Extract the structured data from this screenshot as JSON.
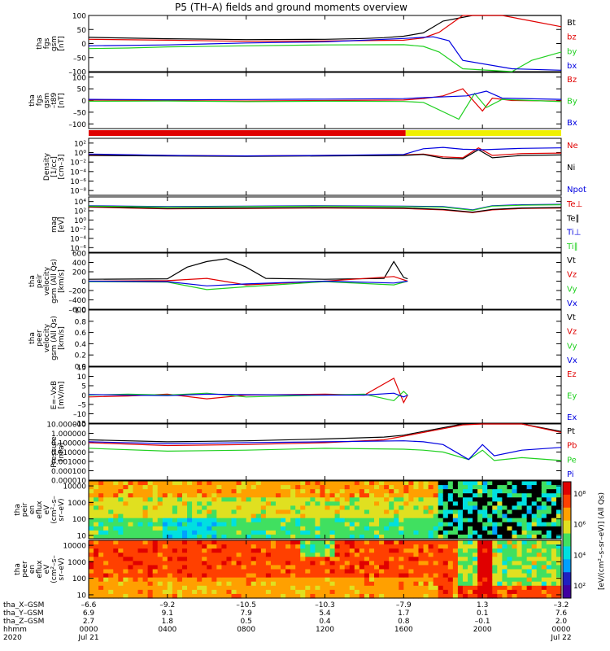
{
  "title": "P5 (TH–A) fields and ground moments overview",
  "colors": {
    "black": "#000000",
    "red": "#e00000",
    "green": "#20d020",
    "blue": "#0000e0",
    "yellow": "#f0f000"
  },
  "panels": [
    {
      "ylabel": [
        "tha",
        "fgs",
        "gsm",
        "[nT]"
      ],
      "ticks": [
        "100",
        "50",
        "0",
        "–50",
        "–100"
      ],
      "tick_values": [
        100,
        50,
        0,
        -50,
        -100
      ],
      "ylim": [
        -100,
        100
      ],
      "legend": [
        {
          "text": "Bt",
          "color": "black"
        },
        {
          "text": "bz",
          "color": "red"
        },
        {
          "text": "by",
          "color": "green"
        },
        {
          "text": "bx",
          "color": "blue"
        }
      ]
    },
    {
      "ylabel": [
        "tha",
        "fgs",
        "gsm",
        "–t89",
        "[nT]"
      ],
      "ticks": [
        "100",
        "50",
        "0",
        "–50",
        "–100"
      ],
      "tick_values": [
        100,
        50,
        0,
        -50,
        -100
      ],
      "ylim": [
        -120,
        120
      ],
      "legend": [
        {
          "text": "Bz",
          "color": "red"
        },
        {
          "text": "By",
          "color": "green"
        },
        {
          "text": "Bx",
          "color": "blue"
        }
      ]
    },
    {
      "ylabel": [
        "Density",
        "[1/cc]",
        "[cm–3]"
      ],
      "ticks": [
        "10²",
        "10⁰",
        "10⁻²",
        "10⁻⁴",
        "10⁻⁶",
        "10⁻⁸"
      ],
      "tick_values": [
        2,
        0,
        -2,
        -4,
        -6,
        -8
      ],
      "ylim": [
        -9,
        3
      ],
      "legend": [
        {
          "text": "Ne",
          "color": "red"
        },
        {
          "text": "Ni",
          "color": "black"
        },
        {
          "text": "Npot",
          "color": "blue"
        }
      ]
    },
    {
      "ylabel": [
        "mag",
        "[eV]"
      ],
      "ticks": [
        "10⁴",
        "10²",
        "10⁰",
        "10⁻²",
        "10⁻⁴",
        "10⁻⁶"
      ],
      "tick_values": [
        4,
        2,
        0,
        -2,
        -4,
        -6
      ],
      "ylim": [
        -7,
        5
      ],
      "legend": [
        {
          "text": "Te⊥",
          "color": "red"
        },
        {
          "text": "Te∥",
          "color": "black"
        },
        {
          "text": "Ti⊥",
          "color": "blue"
        },
        {
          "text": "Ti∥",
          "color": "green"
        }
      ]
    },
    {
      "ylabel": [
        "tha",
        "peir",
        "velocity",
        "gsm (All Qs)",
        "[km/s]"
      ],
      "ticks": [
        "600",
        "400",
        "200",
        "0",
        "–200",
        "–400",
        "–600"
      ],
      "tick_values": [
        600,
        400,
        200,
        0,
        -200,
        -400,
        -600
      ],
      "ylim": [
        -600,
        600
      ],
      "legend": [
        {
          "text": "Vt",
          "color": "black"
        },
        {
          "text": "Vz",
          "color": "red"
        },
        {
          "text": "Vy",
          "color": "green"
        },
        {
          "text": "Vx",
          "color": "blue"
        }
      ]
    },
    {
      "ylabel": [
        "tha",
        "peer",
        "velocity",
        "gsm (All Qs)",
        "[km/s]"
      ],
      "ticks": [
        "1.0",
        "0.8",
        "0.6",
        "0.4",
        "0.2",
        "0.0"
      ],
      "tick_values": [
        1.0,
        0.8,
        0.6,
        0.4,
        0.2,
        0.0
      ],
      "ylim": [
        0,
        1
      ],
      "legend": [
        {
          "text": "Vt",
          "color": "black"
        },
        {
          "text": "Vz",
          "color": "red"
        },
        {
          "text": "Vy",
          "color": "green"
        },
        {
          "text": "Vx",
          "color": "blue"
        }
      ]
    },
    {
      "ylabel": [
        "E=–VxB",
        "[mV/m]"
      ],
      "ticks": [
        "15",
        "10",
        "5",
        "0",
        "–5",
        "–10",
        "–15"
      ],
      "tick_values": [
        15,
        10,
        5,
        0,
        -5,
        -10,
        -15
      ],
      "ylim": [
        -15,
        15
      ],
      "legend": [
        {
          "text": "Ez",
          "color": "red"
        },
        {
          "text": "Ey",
          "color": "green"
        },
        {
          "text": "Ex",
          "color": "blue"
        }
      ]
    },
    {
      "ylabel": [
        "Pressure",
        "[nPa]"
      ],
      "ticks": [
        "10.000000",
        "1.000000",
        "0.100000",
        "0.010000",
        "0.001000",
        "0.000100",
        "0.000010"
      ],
      "tick_values": [
        1,
        0,
        -1,
        -2,
        -3,
        -4,
        -5
      ],
      "ylim": [
        -5,
        1
      ],
      "legend": [
        {
          "text": "Pt",
          "color": "black"
        },
        {
          "text": "Pb",
          "color": "red"
        },
        {
          "text": "Pe",
          "color": "green"
        },
        {
          "text": "Pi",
          "color": "blue"
        }
      ]
    },
    {
      "ylabel": [
        "tha",
        "peir",
        "en",
        "eflux",
        "eV",
        "(cm²–s–",
        "sr–eV)"
      ],
      "ticks": [
        "10000",
        "1000",
        "100",
        "10"
      ],
      "tick_values": [
        4,
        3,
        2,
        1
      ],
      "ylim": [
        0.8,
        4.3
      ],
      "legend": []
    },
    {
      "ylabel": [
        "tha",
        "peer",
        "en",
        "eflux",
        "eV",
        "(cm²–s–",
        "sr–eV)"
      ],
      "ticks": [
        "10000",
        "1000",
        "100",
        "10"
      ],
      "tick_values": [
        4,
        3,
        2,
        1
      ],
      "ylim": [
        0.8,
        4.3
      ],
      "legend": []
    }
  ],
  "colorbar": {
    "ticks": [
      "10⁸",
      "10⁶",
      "10⁴",
      "10²"
    ],
    "label": "[eV/(cm²–s–sr–eV)] (All Qs)"
  },
  "xaxis": {
    "row_labels": [
      "tha_X–GSM",
      "tha_Y–GSM",
      "tha_Z–GSM",
      "hhmm",
      "2020"
    ],
    "ticks": [
      {
        "x_gsm": "–6.6",
        "y_gsm": "6.9",
        "z_gsm": "2.7",
        "hhmm": "0000",
        "date": "Jul 21"
      },
      {
        "x_gsm": "–9.2",
        "y_gsm": "9.1",
        "z_gsm": "1.8",
        "hhmm": "0400",
        "date": ""
      },
      {
        "x_gsm": "–10.5",
        "y_gsm": "7.9",
        "z_gsm": "0.5",
        "hhmm": "0800",
        "date": ""
      },
      {
        "x_gsm": "–10.3",
        "y_gsm": "5.4",
        "z_gsm": "0.4",
        "hhmm": "1200",
        "date": ""
      },
      {
        "x_gsm": "–7.9",
        "y_gsm": "1.7",
        "z_gsm": "0.8",
        "hhmm": "1600",
        "date": ""
      },
      {
        "x_gsm": "1.3",
        "y_gsm": "0.1",
        "z_gsm": "–0.1",
        "hhmm": "2000",
        "date": ""
      },
      {
        "x_gsm": "–3.2",
        "y_gsm": "7.6",
        "z_gsm": "2.0",
        "hhmm": "0000",
        "date": "Jul 22"
      }
    ]
  },
  "mode_bar": {
    "segments": [
      {
        "color": "red",
        "from_hour": 0,
        "to_hour": 16.1
      },
      {
        "color": "yellow",
        "from_hour": 16.1,
        "to_hour": 24
      }
    ]
  },
  "chart_data": {
    "type": "line",
    "x_unit": "hours UT since 2020 Jul 21 0000",
    "x_range": [
      0,
      24
    ],
    "series": [
      {
        "name": "Bt",
        "panel": 0,
        "x": [
          0,
          4,
          8,
          12,
          14,
          15,
          16,
          17,
          18,
          19.5,
          20.5,
          22,
          24
        ],
        "y": [
          22,
          17,
          14,
          15,
          18,
          21,
          26,
          38,
          80,
          100,
          100,
          100,
          100
        ]
      },
      {
        "name": "bz",
        "panel": 0,
        "x": [
          0,
          4,
          8,
          12,
          16,
          17,
          17.8,
          19,
          20,
          21,
          22.5,
          24
        ],
        "y": [
          15,
          12,
          8,
          9,
          12,
          20,
          40,
          100,
          100,
          100,
          80,
          60
        ]
      },
      {
        "name": "by",
        "panel": 0,
        "x": [
          0,
          2,
          4,
          8,
          12,
          16,
          17,
          17.8,
          19,
          21.5,
          22.5,
          24
        ],
        "y": [
          -18,
          -16,
          -12,
          -8,
          -5,
          -4,
          -10,
          -30,
          -90,
          -100,
          -60,
          -30
        ]
      },
      {
        "name": "bx",
        "panel": 0,
        "x": [
          0,
          4,
          8,
          12,
          16,
          17.5,
          18.3,
          19,
          21.5,
          24
        ],
        "y": [
          -8,
          -5,
          2,
          6,
          18,
          24,
          10,
          -60,
          -90,
          -95
        ]
      },
      {
        "name": "Bz",
        "panel": 1,
        "x": [
          0,
          4,
          8,
          12,
          16,
          17,
          18,
          19,
          20,
          20.5,
          21.5,
          24
        ],
        "y": [
          2,
          0,
          -2,
          0,
          2,
          8,
          20,
          50,
          -45,
          10,
          0,
          -2
        ]
      },
      {
        "name": "By",
        "panel": 1,
        "x": [
          0,
          4,
          8,
          12,
          16,
          17,
          18.8,
          19.6,
          20.2,
          21,
          24
        ],
        "y": [
          -3,
          -2,
          -5,
          -3,
          -4,
          -8,
          -80,
          30,
          -30,
          5,
          -5
        ]
      },
      {
        "name": "Bx",
        "panel": 1,
        "x": [
          0,
          4,
          8,
          12,
          16,
          17,
          19.2,
          20.2,
          21,
          24
        ],
        "y": [
          5,
          3,
          4,
          6,
          8,
          12,
          20,
          40,
          10,
          5
        ]
      },
      {
        "name": "Ne",
        "panel": 2,
        "x": [
          0,
          4,
          8,
          12,
          16,
          17,
          18,
          19,
          19.8,
          20.5,
          22,
          24
        ],
        "y": [
          -0.4,
          -0.6,
          -0.7,
          -0.6,
          -0.5,
          -0.3,
          -0.9,
          -1.1,
          1.0,
          -0.6,
          -0.2,
          -0.1
        ]
      },
      {
        "name": "Ni",
        "panel": 2,
        "x": [
          0,
          4,
          8,
          12,
          16,
          17,
          18,
          19,
          19.8,
          20.5,
          22,
          24
        ],
        "y": [
          -0.6,
          -0.7,
          -0.8,
          -0.7,
          -0.6,
          -0.4,
          -1.2,
          -1.3,
          0.6,
          -1.1,
          -0.6,
          -0.5
        ]
      },
      {
        "name": "Npot",
        "panel": 2,
        "x": [
          0,
          4,
          8,
          12,
          16,
          17,
          18,
          19,
          20,
          22,
          24
        ],
        "y": [
          -0.3,
          -0.6,
          -0.7,
          -0.6,
          -0.4,
          0.8,
          1.1,
          0.7,
          0.6,
          0.9,
          1.0
        ]
      },
      {
        "name": "Te⊥",
        "panel": 3,
        "x": [
          0,
          2,
          4,
          8,
          12,
          16,
          18,
          19.5,
          20.5,
          22,
          24
        ],
        "y": [
          2.8,
          2.6,
          2.4,
          2.5,
          2.6,
          2.5,
          2.2,
          1.6,
          2.2,
          2.5,
          2.6
        ]
      },
      {
        "name": "Te∥",
        "panel": 3,
        "x": [
          0,
          2,
          4,
          8,
          12,
          16,
          18,
          19.5,
          20.5,
          22,
          24
        ],
        "y": [
          2.9,
          2.7,
          2.5,
          2.6,
          2.7,
          2.6,
          2.3,
          1.7,
          2.3,
          2.6,
          2.7
        ]
      },
      {
        "name": "Ti⊥",
        "panel": 3,
        "x": [
          0,
          2,
          4,
          8,
          12,
          16,
          18,
          19.5,
          20.5,
          22,
          24
        ],
        "y": [
          3.1,
          3.0,
          2.9,
          3.0,
          3.1,
          3.0,
          2.9,
          2.2,
          3.1,
          3.3,
          3.4
        ]
      },
      {
        "name": "Ti∥",
        "panel": 3,
        "x": [
          0,
          2,
          4,
          8,
          12,
          16,
          18,
          19.5,
          20.5,
          22,
          24
        ],
        "y": [
          3.0,
          2.9,
          2.8,
          2.9,
          3.0,
          2.9,
          2.8,
          2.1,
          3.0,
          3.2,
          3.3
        ]
      },
      {
        "name": "Vt",
        "panel": 4,
        "x": [
          0,
          4,
          5,
          6,
          7,
          8,
          9,
          12,
          15,
          15.5,
          16,
          16.2
        ],
        "y": [
          40,
          50,
          300,
          420,
          480,
          300,
          60,
          40,
          60,
          420,
          80,
          50
        ]
      },
      {
        "name": "Vz",
        "panel": 4,
        "x": [
          0,
          4,
          6,
          8,
          12,
          15.5,
          16.2
        ],
        "y": [
          0,
          10,
          60,
          -80,
          0,
          100,
          0
        ]
      },
      {
        "name": "Vy",
        "panel": 4,
        "x": [
          0,
          4,
          6,
          8,
          12,
          15.5,
          16.2
        ],
        "y": [
          -10,
          -20,
          -180,
          -120,
          -10,
          -80,
          0
        ]
      },
      {
        "name": "Vx",
        "panel": 4,
        "x": [
          0,
          4,
          6,
          8,
          12,
          15.5,
          16.2
        ],
        "y": [
          0,
          -10,
          -100,
          -60,
          0,
          -40,
          0
        ]
      },
      {
        "name": "Ez",
        "panel": 6,
        "x": [
          0,
          2,
          4,
          6,
          8,
          12,
          14,
          15.5,
          16,
          16.2
        ],
        "y": [
          -1,
          -0.5,
          0.5,
          -2,
          0,
          0.5,
          0,
          9,
          -4,
          0
        ]
      },
      {
        "name": "Ey",
        "panel": 6,
        "x": [
          0,
          2,
          4,
          6,
          8,
          12,
          14,
          15.5,
          16,
          16.2
        ],
        "y": [
          0,
          0.5,
          0,
          1,
          -1,
          0,
          0.5,
          -3,
          2,
          0
        ]
      },
      {
        "name": "Ex",
        "panel": 6,
        "x": [
          0,
          2,
          4,
          6,
          8,
          12,
          14,
          15.5,
          16,
          16.2
        ],
        "y": [
          0.3,
          0,
          -0.3,
          0.5,
          0.2,
          0,
          0,
          1,
          -1,
          0
        ]
      },
      {
        "name": "Pt",
        "panel": 7,
        "x": [
          0,
          4,
          8,
          12,
          15,
          16,
          17,
          18,
          19,
          20,
          21,
          22,
          24
        ],
        "y": [
          -0.7,
          -0.9,
          -0.8,
          -0.6,
          -0.4,
          -0.2,
          0.2,
          0.6,
          1.0,
          1.0,
          1.0,
          1.0,
          0.2
        ]
      },
      {
        "name": "Pb",
        "panel": 7,
        "x": [
          0,
          4,
          8,
          12,
          15,
          16,
          17,
          18,
          19,
          20,
          21,
          22,
          24
        ],
        "y": [
          -1.0,
          -1.3,
          -1.2,
          -1.0,
          -0.7,
          -0.3,
          0.1,
          0.5,
          0.9,
          1.0,
          1.0,
          1.0,
          0.1
        ]
      },
      {
        "name": "Pe",
        "panel": 7,
        "x": [
          0,
          4,
          8,
          12,
          16,
          17,
          18,
          19.3,
          20,
          20.6,
          22,
          24
        ],
        "y": [
          -1.6,
          -1.9,
          -1.8,
          -1.6,
          -1.7,
          -1.8,
          -2.0,
          -2.8,
          -1.8,
          -2.9,
          -2.6,
          -2.9
        ]
      },
      {
        "name": "Pi",
        "panel": 7,
        "x": [
          0,
          4,
          8,
          12,
          16,
          17,
          18,
          19.3,
          20,
          20.6,
          22,
          24
        ],
        "y": [
          -0.9,
          -1.1,
          -1.0,
          -0.9,
          -0.8,
          -0.9,
          -1.2,
          -2.8,
          -1.2,
          -2.4,
          -1.8,
          -1.5
        ]
      }
    ]
  }
}
